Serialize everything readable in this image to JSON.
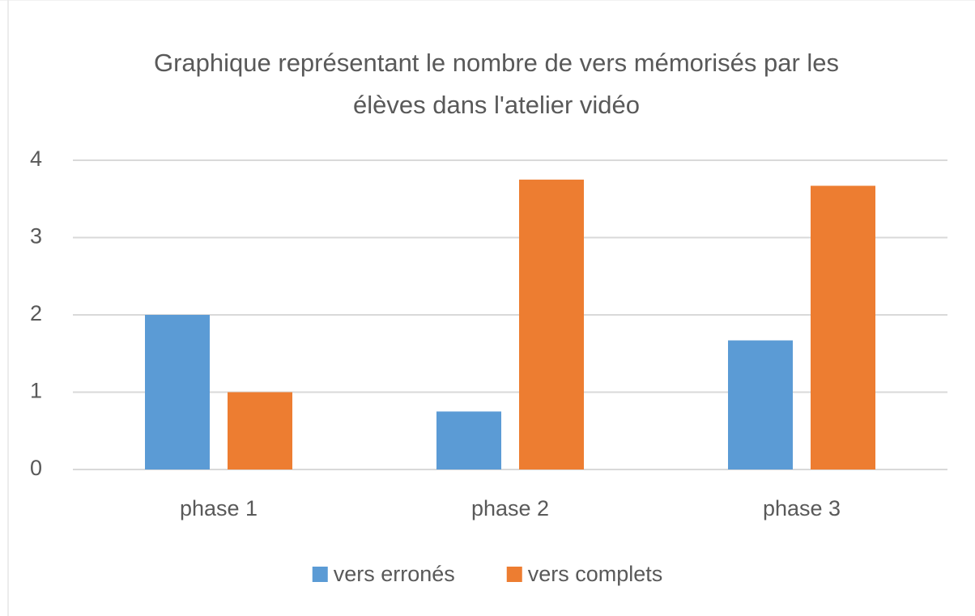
{
  "chart_data": {
    "type": "bar",
    "title": "Graphique représentant le nombre de vers mémorisés par les élèves dans l'atelier vidéo",
    "categories": [
      "phase 1",
      "phase 2",
      "phase 3"
    ],
    "series": [
      {
        "name": "vers erronés",
        "color": "#5b9bd5",
        "values": [
          2,
          0.75,
          1.67
        ]
      },
      {
        "name": "vers complets",
        "color": "#ed7d31",
        "values": [
          1,
          3.75,
          3.67
        ]
      }
    ],
    "ylim": [
      0,
      4
    ],
    "yticks": [
      0,
      1,
      2,
      3,
      4
    ],
    "grid": true,
    "legend": "bottom"
  }
}
